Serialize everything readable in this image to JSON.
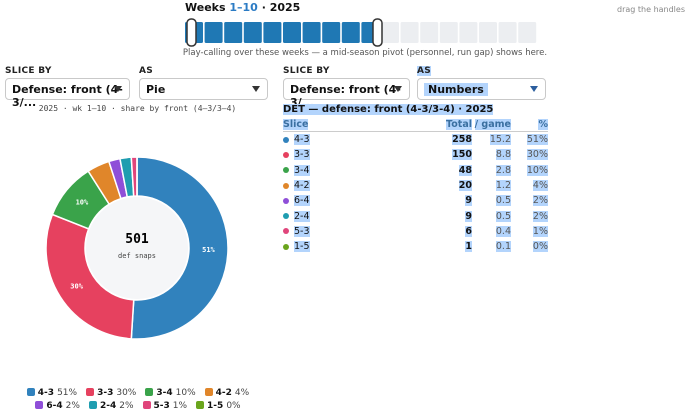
{
  "header": {
    "title": "Weeks",
    "range": "1–10",
    "season": "· 2025",
    "hint": "drag the handles",
    "caption": "Play-calling over these weeks — a mid-season pivot (personnel, run gap) shows here."
  },
  "left_controls": {
    "slice_label": "SLICE BY",
    "slice_value": "Defense: front (4-3/...",
    "as_label": "AS",
    "as_value": "Pie"
  },
  "right_controls": {
    "slice_label": "SLICE BY",
    "slice_value": "Defense: front (4-3/...",
    "as_label": "AS",
    "as_value": "Numbers"
  },
  "chart_data": {
    "type": "pie",
    "donut": true,
    "title": "2025 · wk 1–10 · share by front (4–3/3–4)",
    "categories": [
      "4-3",
      "3-3",
      "3-4",
      "4-2",
      "6-4",
      "2-4",
      "5-3",
      "1-5"
    ],
    "values": [
      51,
      30,
      10,
      4,
      2,
      2,
      1,
      0
    ],
    "value_labels": [
      "51%",
      "30%",
      "10%",
      "4%",
      "2%",
      "2%",
      "1%",
      "0%"
    ],
    "colors": [
      "#3182bd",
      "#e6415f",
      "#3aa34a",
      "#e0862a",
      "#8f4fd8",
      "#1f9db0",
      "#e0457b",
      "#6aa51c"
    ],
    "center_value": 501,
    "center_label": "def snaps"
  },
  "table": {
    "title": "DET — defense: front (4-3/3-4) · 2025",
    "columns": [
      "Slice",
      "Total",
      "/ game",
      "%"
    ],
    "rows": [
      [
        "4-3",
        258,
        15.2,
        "51%"
      ],
      [
        "3-3",
        150,
        8.8,
        "30%"
      ],
      [
        "3-4",
        48,
        2.8,
        "10%"
      ],
      [
        "4-2",
        20,
        1.2,
        "4%"
      ],
      [
        "6-4",
        9,
        0.5,
        "2%"
      ],
      [
        "2-4",
        9,
        0.5,
        "2%"
      ],
      [
        "5-3",
        6,
        0.4,
        "1%"
      ],
      [
        "1-5",
        1,
        0.1,
        "0%"
      ]
    ]
  }
}
